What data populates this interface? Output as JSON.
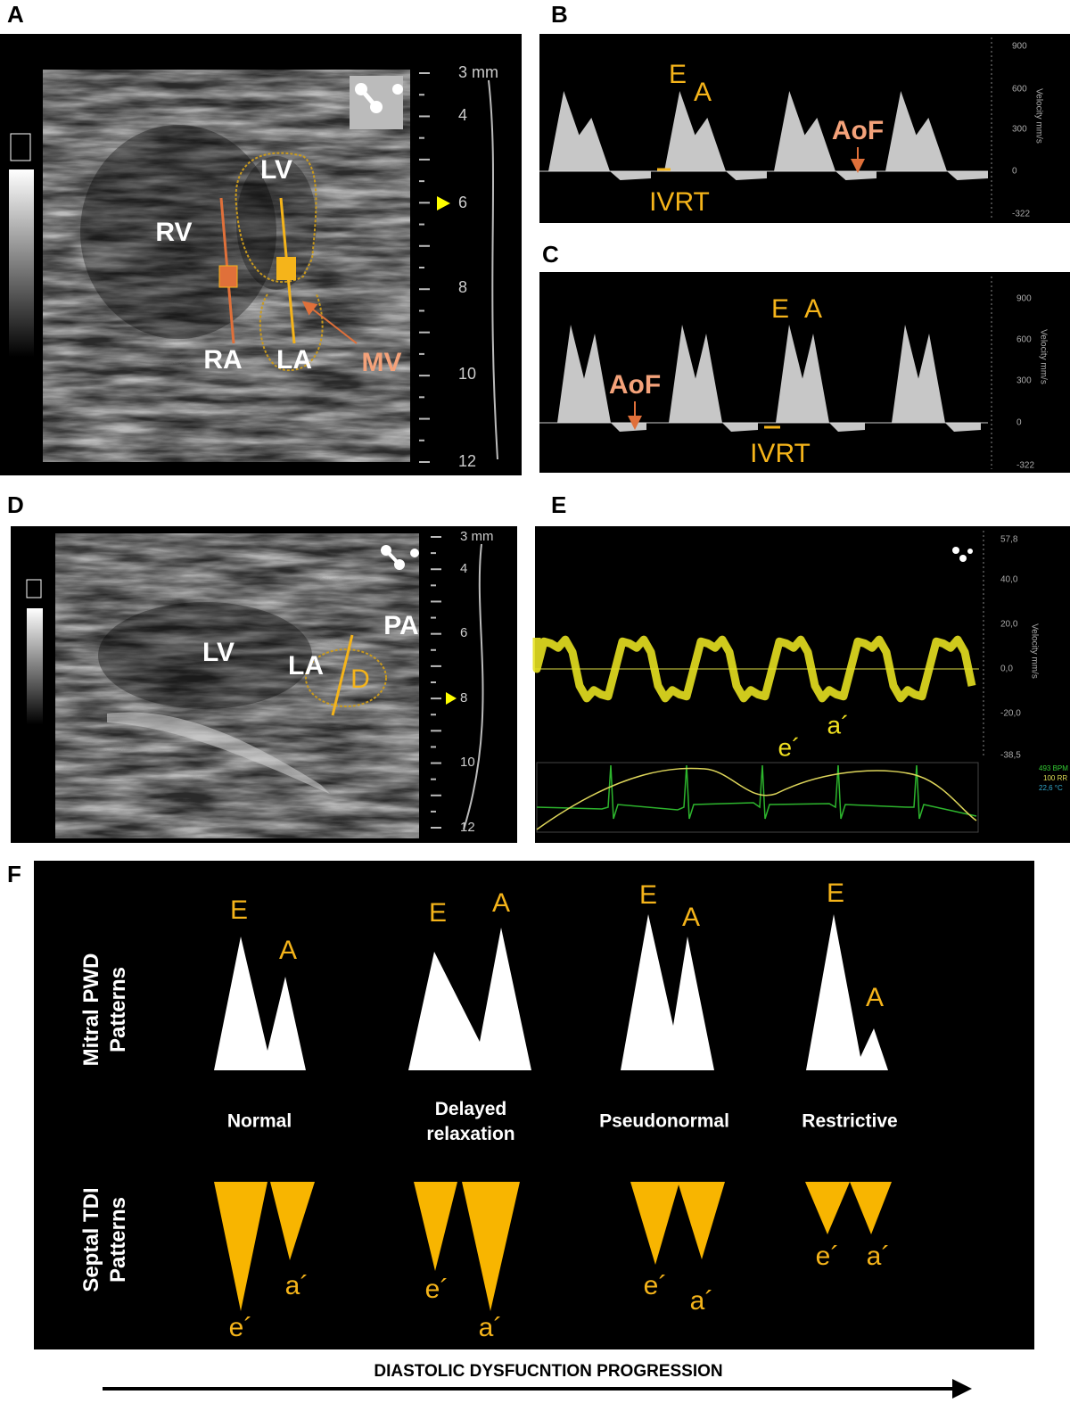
{
  "panel_labels": [
    "A",
    "B",
    "C",
    "D",
    "E",
    "F"
  ],
  "panel_a": {
    "depth_ticks": [
      "3 mm",
      "4",
      "6",
      "8",
      "10",
      "12"
    ],
    "labels": [
      "RV",
      "LV",
      "RA",
      "LA",
      "MV"
    ]
  },
  "panel_b": {
    "axis_ticks": [
      "900",
      "600",
      "300",
      "0",
      "-322"
    ],
    "axis_title": "Velocity mm/s",
    "labels": [
      "E",
      "A",
      "AoF",
      "IVRT"
    ]
  },
  "panel_c": {
    "axis_ticks": [
      "900",
      "600",
      "300",
      "0",
      "-322"
    ],
    "axis_title": "Velocity mm/s",
    "labels": [
      "E",
      "A",
      "AoF",
      "IVRT"
    ]
  },
  "panel_d": {
    "depth_ticks": [
      "3 mm",
      "4",
      "6",
      "8",
      "10",
      "12"
    ],
    "labels": [
      "LV",
      "LA",
      "D",
      "PA"
    ]
  },
  "panel_e": {
    "axis_ticks": [
      "57,8",
      "40,0",
      "20,0",
      "0,0",
      "-20,0",
      "-38,5"
    ],
    "axis_title": "Velocity mm/s",
    "labels": [
      "e´",
      "a´"
    ],
    "ecg_info": [
      "493 BPM",
      "100 RR",
      "22,6 °C"
    ]
  },
  "panel_f": {
    "row_labels": [
      "Mitral PWD Patterns",
      "Septal TDI Patterns"
    ],
    "columns": [
      {
        "name": "Normal",
        "mitral": [
          "E",
          "A"
        ],
        "septal": [
          "e´",
          "a´"
        ]
      },
      {
        "name": "Delayed relaxation",
        "mitral": [
          "E",
          "A"
        ],
        "septal": [
          "e´",
          "a´"
        ]
      },
      {
        "name": "Pseudonormal",
        "mitral": [
          "E",
          "A"
        ],
        "septal": [
          "e´",
          "a´"
        ]
      },
      {
        "name": "Restrictive",
        "mitral": [
          "E",
          "A"
        ],
        "septal": [
          "e´",
          "a´"
        ]
      }
    ],
    "arrow_label": "DIASTOLIC DYSFUCNTION PROGRESSION"
  }
}
